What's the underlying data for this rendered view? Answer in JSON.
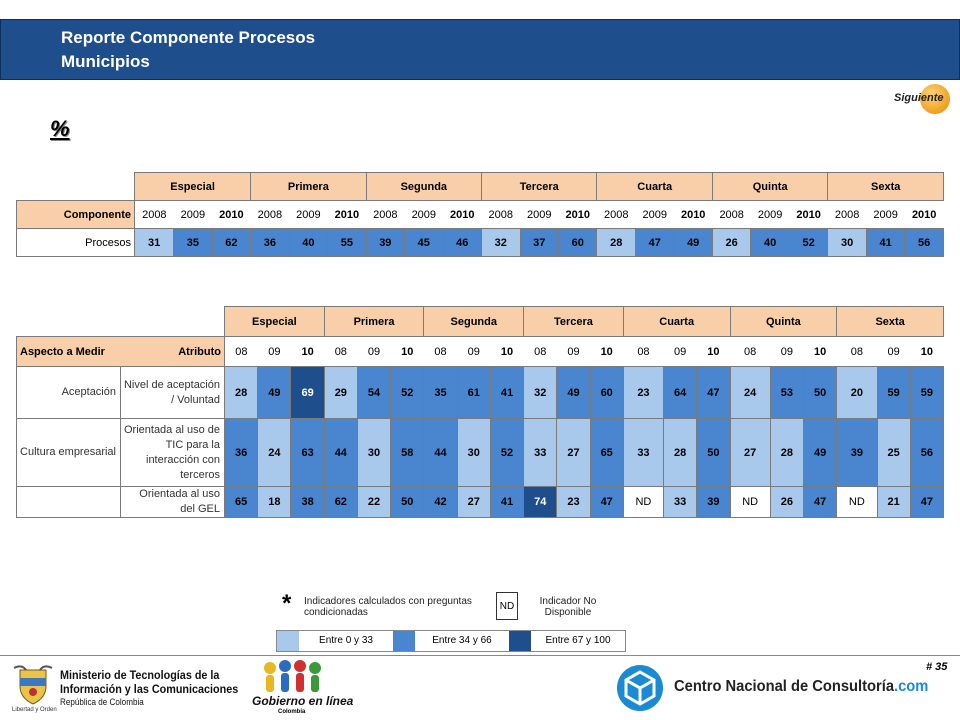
{
  "header": {
    "title_line1": "Reporte Componente Procesos",
    "title_line2": "Municipios"
  },
  "nav": {
    "next_label": "Siguiente"
  },
  "unit_label": "%",
  "colors": {
    "low": "#a8c8ec",
    "mid": "#4a86d0",
    "high": "#1f4e8c",
    "header_bg": "#f8cfa8",
    "title_bar": "#1f4e8c"
  },
  "categories": [
    "Especial",
    "Primera",
    "Segunda",
    "Tercera",
    "Cuarta",
    "Quinta",
    "Sexta"
  ],
  "table1": {
    "row_header": "Componente",
    "years": [
      "2008",
      "2009",
      "2010"
    ],
    "row_label": "Procesos",
    "values": [
      "31",
      "35",
      "62",
      "36",
      "40",
      "55",
      "39",
      "45",
      "46",
      "32",
      "37",
      "60",
      "28",
      "47",
      "49",
      "26",
      "40",
      "52",
      "30",
      "41",
      "56"
    ]
  },
  "table2": {
    "col_aspect": "Aspecto a Medir",
    "col_attr": "Atributo",
    "years": [
      "08",
      "09",
      "10"
    ],
    "rows": [
      {
        "aspect": "Aceptación",
        "attribute": "Nivel de aceptación / Voluntad",
        "values": [
          "28",
          "49",
          "69",
          "29",
          "54",
          "52",
          "35",
          "61",
          "41",
          "32",
          "49",
          "60",
          "23",
          "64",
          "47",
          "24",
          "53",
          "50",
          "20",
          "59",
          "59"
        ]
      },
      {
        "aspect": "Cultura empresarial",
        "attribute": "Orientada al uso de TIC para la interacción con terceros",
        "values": [
          "36",
          "24",
          "63",
          "44",
          "30",
          "58",
          "44",
          "30",
          "52",
          "33",
          "27",
          "65",
          "33",
          "28",
          "50",
          "27",
          "28",
          "49",
          "39",
          "25",
          "56"
        ]
      },
      {
        "aspect": "",
        "attribute": "Orientada al uso del GEL",
        "values": [
          "65",
          "18",
          "38",
          "62",
          "22",
          "50",
          "42",
          "27",
          "41",
          "74",
          "23",
          "47",
          "ND",
          "33",
          "39",
          "ND",
          "26",
          "47",
          "ND",
          "21",
          "47"
        ]
      }
    ]
  },
  "legend": {
    "star": "*",
    "star_text": "Indicadores calculados con preguntas condicionadas",
    "nd_box": "ND",
    "nd_text": "Indicador No Disponible",
    "range_low": "Entre 0 y 33",
    "range_mid": "Entre 34 y 66",
    "range_high": "Entre 67 y 100"
  },
  "footer": {
    "page_number": "# 35",
    "ministry_line1": "Ministerio de Tecnologías de la",
    "ministry_line2": "Información y las Comunicaciones",
    "ministry_line3": "República de Colombia",
    "ministry_motto": "Libertad y Orden",
    "gel_name": "Gobierno en línea",
    "gel_country": "Colombia",
    "cnc_name": "Centro Nacional de Consultoría",
    "cnc_domain": ".com"
  }
}
